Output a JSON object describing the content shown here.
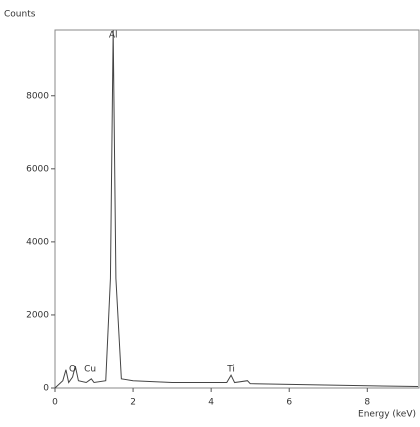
{
  "chart_data": {
    "type": "line",
    "ylabel": "Counts",
    "xlabel": "Energy (keV)",
    "x": [
      0,
      0.2,
      0.28,
      0.35,
      0.45,
      0.52,
      0.6,
      0.8,
      0.93,
      1.0,
      1.3,
      1.42,
      1.49,
      1.56,
      1.7,
      2.0,
      3.0,
      4.4,
      4.51,
      4.6,
      4.93,
      5.0,
      6.0,
      8.0,
      9.3
    ],
    "series": [
      {
        "color": "#444444",
        "values": [
          0,
          200,
          500,
          150,
          300,
          600,
          200,
          150,
          250,
          150,
          200,
          3000,
          9800,
          3000,
          250,
          200,
          150,
          150,
          350,
          150,
          200,
          120,
          100,
          60,
          40
        ]
      }
    ],
    "annotations": [
      {
        "text": "O",
        "x": 0.45,
        "y": 350
      },
      {
        "text": "Cu",
        "x": 0.9,
        "y": 350
      },
      {
        "text": "Al",
        "x": 1.49,
        "y": 9500
      },
      {
        "text": "Ti",
        "x": 4.51,
        "y": 350
      }
    ],
    "xlim": [
      0,
      9.35
    ],
    "ylim": [
      0,
      9800
    ],
    "xticks": [
      0,
      2,
      4,
      6,
      8
    ],
    "yticks": [
      0,
      2000,
      4000,
      6000,
      8000
    ]
  }
}
